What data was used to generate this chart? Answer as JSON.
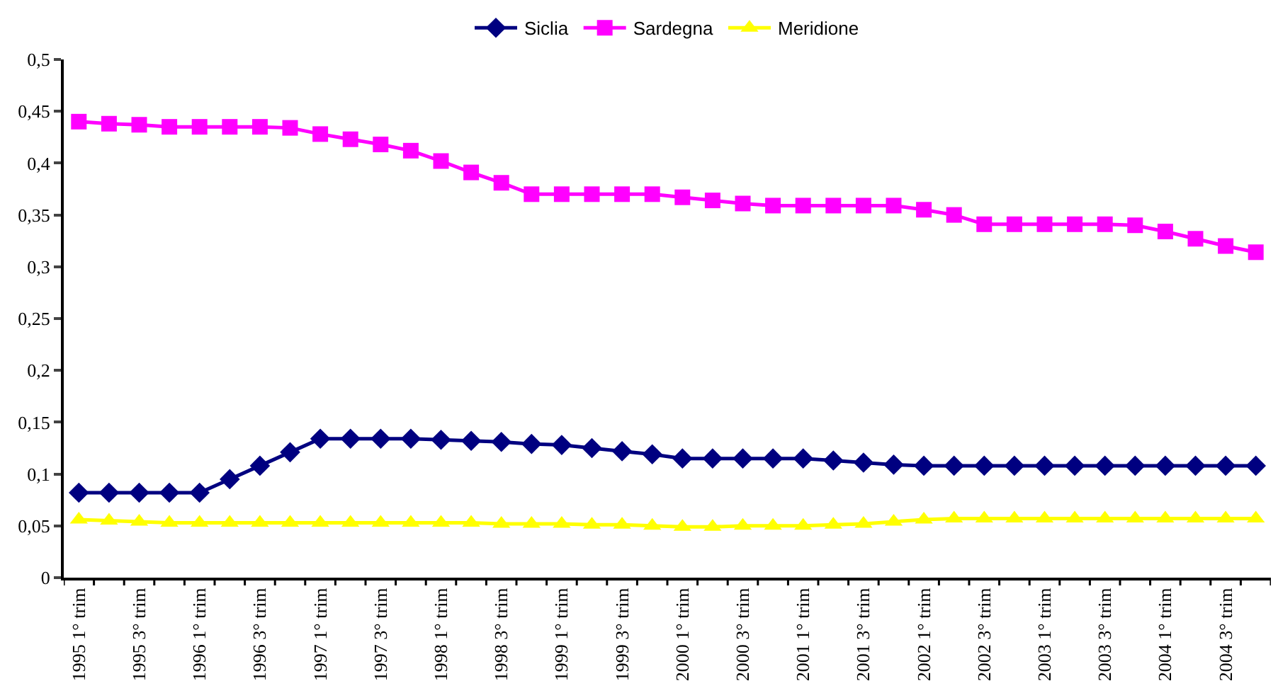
{
  "chart_data": {
    "type": "line",
    "categories": [
      "1995 1° trim",
      null,
      "1995 3° trim",
      null,
      "1996 1° trim",
      null,
      "1996 3° trim",
      null,
      "1997 1° trim",
      null,
      "1997 3° trim",
      null,
      "1998 1° trim",
      null,
      "1998 3° trim",
      null,
      "1999 1° trim",
      null,
      "1999 3° trim",
      null,
      "2000 1° trim",
      null,
      "2000 3° trim",
      null,
      "2001 1° trim",
      null,
      "2001 3° trim",
      null,
      "2002 1° trim",
      null,
      "2002 3° trim",
      null,
      "2003 1° trim",
      null,
      "2003 3° trim",
      null,
      "2004 1° trim",
      null,
      "2004 3° trim",
      null
    ],
    "series": [
      {
        "name": "Siclia",
        "color": "#000080",
        "marker": "diamond",
        "values": [
          0.082,
          0.082,
          0.082,
          0.082,
          0.082,
          0.095,
          0.108,
          0.121,
          0.134,
          0.134,
          0.134,
          0.134,
          0.133,
          0.132,
          0.131,
          0.129,
          0.128,
          0.125,
          0.122,
          0.119,
          0.115,
          0.115,
          0.115,
          0.115,
          0.115,
          0.113,
          0.111,
          0.109,
          0.108,
          0.108,
          0.108,
          0.108,
          0.108,
          0.108,
          0.108,
          0.108,
          0.108,
          0.108,
          0.108,
          0.108
        ]
      },
      {
        "name": "Sardegna",
        "color": "#ff00ff",
        "marker": "square",
        "values": [
          0.44,
          0.438,
          0.437,
          0.435,
          0.435,
          0.435,
          0.435,
          0.434,
          0.428,
          0.423,
          0.418,
          0.412,
          0.402,
          0.391,
          0.381,
          0.37,
          0.37,
          0.37,
          0.37,
          0.37,
          0.367,
          0.364,
          0.361,
          0.359,
          0.359,
          0.359,
          0.359,
          0.359,
          0.355,
          0.35,
          0.341,
          0.341,
          0.341,
          0.341,
          0.341,
          0.34,
          0.334,
          0.327,
          0.32,
          0.314
        ]
      },
      {
        "name": "Meridione",
        "color": "#ffff00",
        "marker": "triangle",
        "values": [
          0.056,
          0.055,
          0.054,
          0.053,
          0.053,
          0.053,
          0.053,
          0.053,
          0.053,
          0.053,
          0.053,
          0.053,
          0.053,
          0.053,
          0.052,
          0.052,
          0.052,
          0.051,
          0.051,
          0.05,
          0.049,
          0.049,
          0.05,
          0.05,
          0.05,
          0.051,
          0.052,
          0.054,
          0.056,
          0.057,
          0.057,
          0.057,
          0.057,
          0.057,
          0.057,
          0.057,
          0.057,
          0.057,
          0.057,
          0.057
        ]
      }
    ],
    "ylim": [
      0,
      0.5
    ],
    "yticks": [
      0,
      {
        "value": 0.05,
        "label": "0,05"
      },
      {
        "value": 0.1,
        "label": "0,1"
      },
      {
        "value": 0.15,
        "label": "0,15"
      },
      {
        "value": 0.2,
        "label": "0,2"
      },
      {
        "value": 0.25,
        "label": "0,25"
      },
      {
        "value": 0.3,
        "label": "0,3"
      },
      {
        "value": 0.35,
        "label": "0,35"
      },
      {
        "value": 0.4,
        "label": "0,4"
      },
      {
        "value": 0.45,
        "label": "0,45"
      },
      {
        "value": 0.5,
        "label": "0,5"
      }
    ],
    "legend": "top",
    "line_style": "solid"
  }
}
